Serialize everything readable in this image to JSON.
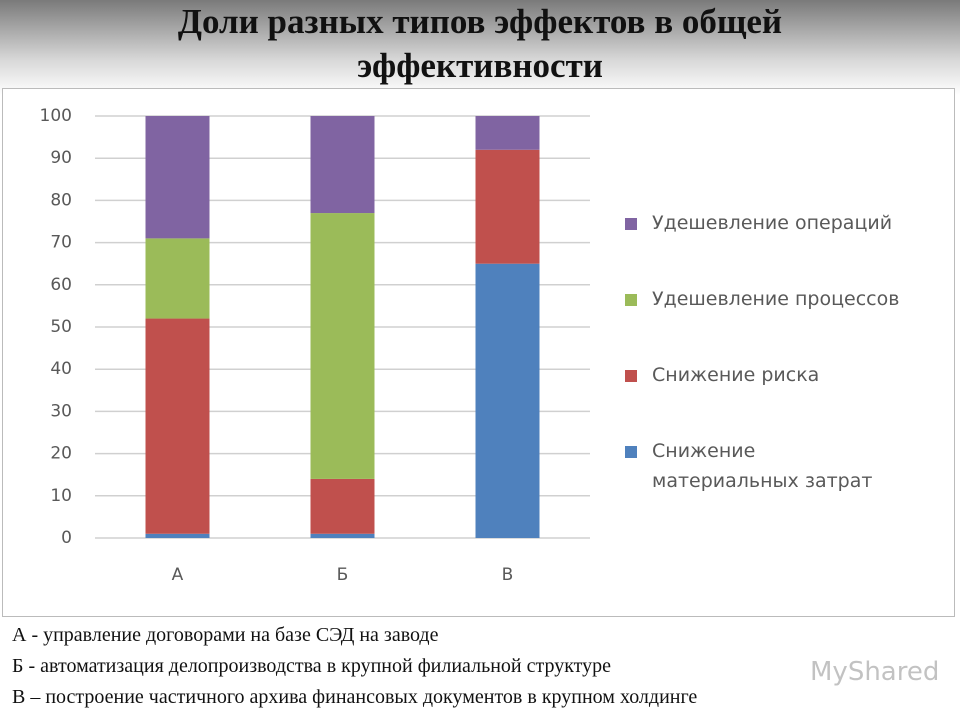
{
  "chart_data": {
    "type": "stacked_bar",
    "title": "Доли разных типов эффектов в общей эффективности",
    "categories": [
      "А",
      "Б",
      "В"
    ],
    "series": [
      {
        "name": "Снижение материальных затрат",
        "color": "#4f81bd",
        "values": [
          1,
          1,
          65
        ]
      },
      {
        "name": "Снижение риска",
        "color": "#c0504d",
        "values": [
          51,
          13,
          27
        ]
      },
      {
        "name": "Удешевление процессов",
        "color": "#9bbb59",
        "values": [
          19,
          63,
          0
        ]
      },
      {
        "name": "Удешевление операций",
        "color": "#8064a2",
        "values": [
          29,
          23,
          8
        ]
      }
    ],
    "ylim": [
      0,
      100
    ],
    "yticks": [
      0,
      10,
      20,
      30,
      40,
      50,
      60,
      70,
      80,
      90,
      100
    ],
    "grid": true,
    "legend": "right",
    "annotations": [
      "А - управление договорами на базе СЭД на заводе",
      "Б - автоматизация делопроизводства в крупной филиальной структуре",
      "В – построение частичного архива финансовых документов в крупном холдинге"
    ]
  },
  "watermark": "MyShared"
}
